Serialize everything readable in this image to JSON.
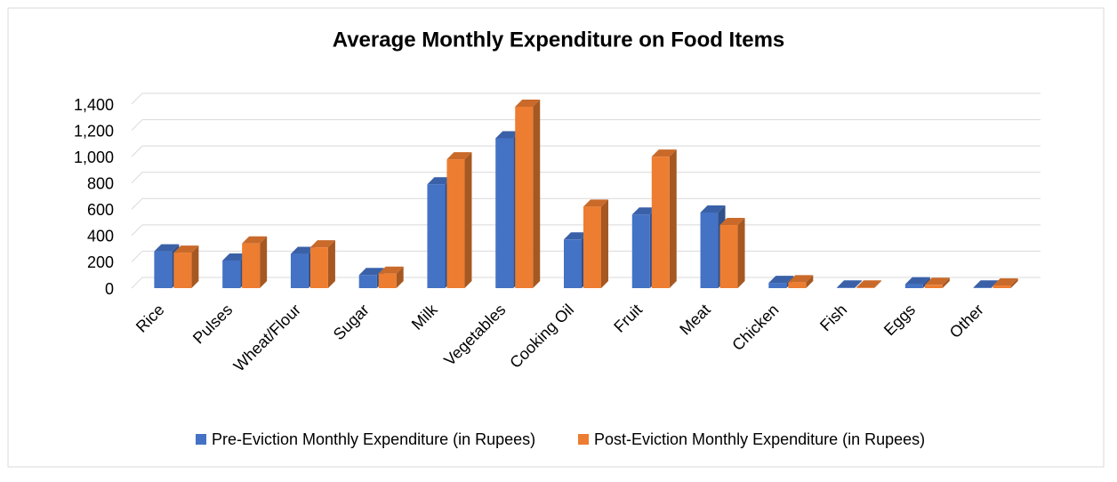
{
  "chart_data": {
    "type": "bar3d",
    "title": "Average Monthly Expenditure on Food Items",
    "categories": [
      "Rice",
      "Pulses",
      "Wheat/Flour",
      "Sugar",
      "Milk",
      "Vegetables",
      "Cooking Oil",
      "Fruit",
      "Meat",
      "Chicken",
      "Fish",
      "Eggs",
      "Other"
    ],
    "series": [
      {
        "name": "Pre-Eviction Monthly Expenditure (in Rupees)",
        "color": "#4472c4",
        "values": [
          280,
          210,
          260,
          100,
          790,
          1140,
          370,
          560,
          575,
          40,
          5,
          30,
          5
        ]
      },
      {
        "name": "Post-Eviction Monthly Expenditure (in Rupees)",
        "color": "#ed7d31",
        "values": [
          270,
          340,
          310,
          110,
          980,
          1380,
          620,
          1000,
          480,
          45,
          5,
          25,
          20
        ]
      }
    ],
    "ylim": [
      0,
      1400
    ],
    "yticks": [
      0,
      200,
      400,
      600,
      800,
      {
        "value": 1000,
        "label": "1,000"
      },
      {
        "value": 1200,
        "label": "1,200"
      },
      {
        "value": 1400,
        "label": "1,400"
      }
    ],
    "grid": true,
    "legend": "bottom"
  }
}
